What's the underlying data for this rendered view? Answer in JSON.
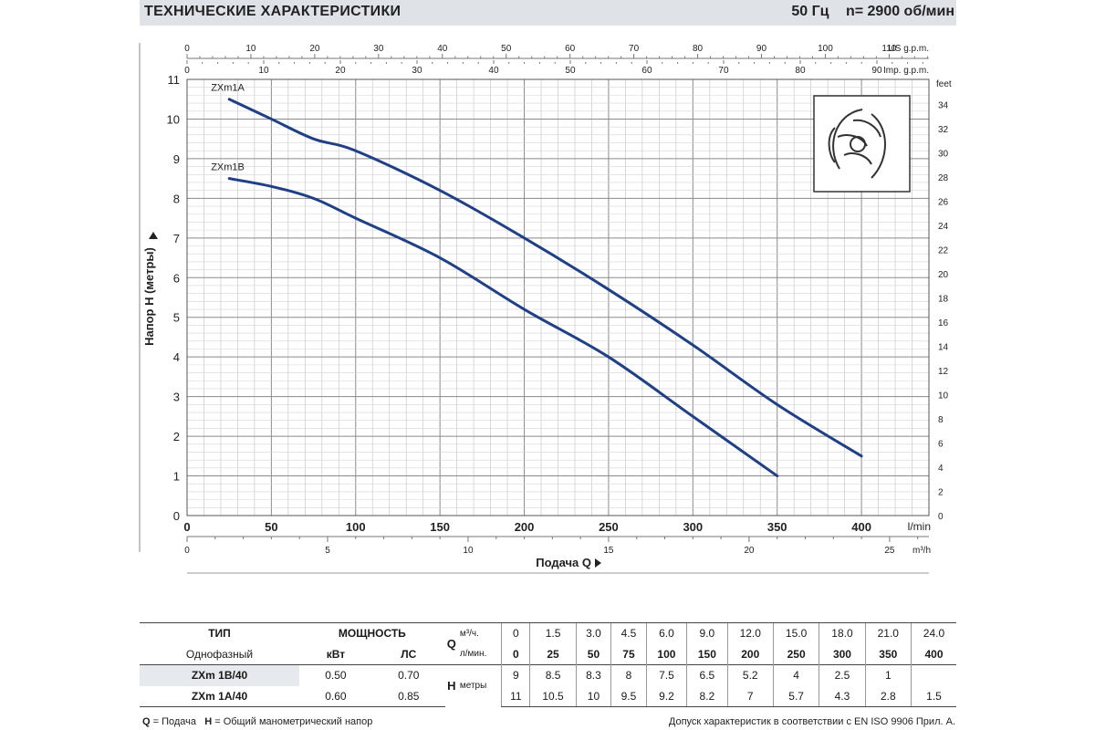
{
  "header": {
    "title": "ТЕХНИЧЕСКИЕ ХАРАКТЕРИСТИКИ",
    "frequency": "50 Гц",
    "speed": "n= 2900 об/мин"
  },
  "chart_data": {
    "type": "line",
    "xlabel": "Подача Q",
    "ylabel": "Напор H (метры)",
    "xlim": [
      0,
      440
    ],
    "ylim": [
      0,
      11
    ],
    "x_unit": "l/min",
    "x_ticks": [
      0,
      50,
      100,
      150,
      200,
      250,
      300,
      350,
      400
    ],
    "y_ticks": [
      0,
      1,
      2,
      3,
      4,
      5,
      6,
      7,
      8,
      9,
      10,
      11
    ],
    "feet_unit": "feet",
    "feet_ticks": [
      0,
      2,
      4,
      6,
      8,
      10,
      12,
      14,
      16,
      18,
      20,
      22,
      24,
      26,
      28,
      30,
      32,
      34
    ],
    "us_gpm_unit": "US g.p.m.",
    "us_gpm_ticks": [
      0,
      10,
      20,
      30,
      40,
      50,
      60,
      70,
      80,
      90,
      100,
      110
    ],
    "imp_gpm_unit": "Imp. g.p.m.",
    "imp_gpm_ticks": [
      0,
      10,
      20,
      30,
      40,
      50,
      60,
      70,
      80,
      90
    ],
    "m3h_unit": "m³/h",
    "m3h_ticks": [
      0,
      5,
      10,
      15,
      20,
      25
    ],
    "grid": true,
    "series": [
      {
        "name": "ZXm1A",
        "color": "#1f3f86",
        "x": [
          25,
          50,
          75,
          100,
          150,
          200,
          250,
          300,
          350,
          400
        ],
        "y": [
          10.5,
          10,
          9.5,
          9.2,
          8.2,
          7,
          5.7,
          4.3,
          2.8,
          1.5
        ]
      },
      {
        "name": "ZXm1B",
        "color": "#1f3f86",
        "x": [
          25,
          50,
          75,
          100,
          150,
          200,
          250,
          300,
          350
        ],
        "y": [
          8.5,
          8.3,
          8,
          7.5,
          6.5,
          5.2,
          4,
          2.5,
          1
        ]
      }
    ]
  },
  "table": {
    "type_label": "ТИП",
    "phase_label": "Однофазный",
    "power_label": "МОЩНОСТЬ",
    "kw_label": "кВт",
    "hp_label": "ЛС",
    "q_letter": "Q",
    "m3h_label": "м³/ч.",
    "lmin_label": "л/мин.",
    "h_letter": "H",
    "meters_label": "метры",
    "m3h_values": [
      "0",
      "1.5",
      "3.0",
      "4.5",
      "6.0",
      "9.0",
      "12.0",
      "15.0",
      "18.0",
      "21.0",
      "24.0"
    ],
    "lmin_values": [
      "0",
      "25",
      "50",
      "75",
      "100",
      "150",
      "200",
      "250",
      "300",
      "350",
      "400"
    ],
    "rows": [
      {
        "model": "ZXm 1B/40",
        "kw": "0.50",
        "hp": "0.70",
        "h": [
          "9",
          "8.5",
          "8.3",
          "8",
          "7.5",
          "6.5",
          "5.2",
          "4",
          "2.5",
          "1",
          ""
        ]
      },
      {
        "model": "ZXm 1A/40",
        "kw": "0.60",
        "hp": "0.85",
        "h": [
          "11",
          "10.5",
          "10",
          "9.5",
          "9.2",
          "8.2",
          "7",
          "5.7",
          "4.3",
          "2.8",
          "1.5"
        ]
      }
    ]
  },
  "footer": {
    "q_key": "Q",
    "q_text": "= Подача",
    "h_key": "H",
    "h_text": "= Общий манометрический напор",
    "right": "Допуск характеристик в соответствии с EN ISO 9906 Прил. А."
  }
}
